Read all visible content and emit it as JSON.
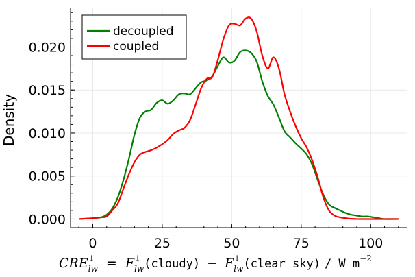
{
  "chart_data": {
    "type": "line",
    "ylabel": "Density",
    "xlabel_parts": {
      "cre": "CRE",
      "sub": "lw",
      "sup": "↓",
      "eq": "=",
      "f": "F",
      "cloudy": "(cloudy)",
      "minus": "−",
      "clear": "(clear sky)",
      "unit": "/ W m",
      "unit_exp": "−2"
    },
    "xlim": [
      -8,
      113
    ],
    "ylim": [
      -0.001,
      0.0245
    ],
    "xticks": [
      0,
      25,
      50,
      75,
      100
    ],
    "xtick_labels": [
      "0",
      "25",
      "50",
      "75",
      "100"
    ],
    "yticks": [
      0.0,
      0.005,
      0.01,
      0.015,
      0.02
    ],
    "ytick_labels": [
      "0.000",
      "0.005",
      "0.010",
      "0.015",
      "0.020"
    ],
    "grid": true,
    "legend_position": "top-left",
    "series": [
      {
        "name": "decoupled",
        "color": "#008000",
        "points": [
          [
            -5,
            0.0
          ],
          [
            0,
            0.0001
          ],
          [
            3,
            0.0002
          ],
          [
            5,
            0.0005
          ],
          [
            7,
            0.0012
          ],
          [
            9,
            0.0025
          ],
          [
            11,
            0.0045
          ],
          [
            13,
            0.007
          ],
          [
            15,
            0.0098
          ],
          [
            17,
            0.0118
          ],
          [
            19,
            0.0125
          ],
          [
            21,
            0.0127
          ],
          [
            23,
            0.0135
          ],
          [
            25,
            0.0138
          ],
          [
            27,
            0.0134
          ],
          [
            29,
            0.0138
          ],
          [
            31,
            0.0145
          ],
          [
            33,
            0.0146
          ],
          [
            35,
            0.0145
          ],
          [
            37,
            0.0152
          ],
          [
            39,
            0.0159
          ],
          [
            41,
            0.0161
          ],
          [
            43,
            0.0166
          ],
          [
            45,
            0.0178
          ],
          [
            47,
            0.0188
          ],
          [
            49,
            0.0182
          ],
          [
            51,
            0.0184
          ],
          [
            53,
            0.0194
          ],
          [
            55,
            0.0196
          ],
          [
            57,
            0.0193
          ],
          [
            59,
            0.0183
          ],
          [
            61,
            0.016
          ],
          [
            63,
            0.0143
          ],
          [
            65,
            0.0133
          ],
          [
            67,
            0.0118
          ],
          [
            69,
            0.0102
          ],
          [
            71,
            0.0095
          ],
          [
            73,
            0.0088
          ],
          [
            75,
            0.0082
          ],
          [
            77,
            0.0075
          ],
          [
            79,
            0.0063
          ],
          [
            81,
            0.0045
          ],
          [
            83,
            0.0028
          ],
          [
            85,
            0.0017
          ],
          [
            87,
            0.0013
          ],
          [
            89,
            0.001
          ],
          [
            91,
            0.0007
          ],
          [
            93,
            0.0005
          ],
          [
            95,
            0.0004
          ],
          [
            97,
            0.0003
          ],
          [
            99,
            0.0003
          ],
          [
            101,
            0.0002
          ],
          [
            103,
            0.0001
          ],
          [
            105,
            0.0
          ],
          [
            110,
            0.0
          ]
        ]
      },
      {
        "name": "coupled",
        "color": "#ff0000",
        "points": [
          [
            -5,
            0.0
          ],
          [
            0,
            0.0001
          ],
          [
            3,
            0.0002
          ],
          [
            5,
            0.0003
          ],
          [
            7,
            0.001
          ],
          [
            9,
            0.0018
          ],
          [
            11,
            0.0035
          ],
          [
            13,
            0.0052
          ],
          [
            15,
            0.0066
          ],
          [
            17,
            0.0075
          ],
          [
            19,
            0.0078
          ],
          [
            21,
            0.008
          ],
          [
            23,
            0.0083
          ],
          [
            25,
            0.0087
          ],
          [
            27,
            0.0092
          ],
          [
            29,
            0.0099
          ],
          [
            31,
            0.0103
          ],
          [
            33,
            0.0106
          ],
          [
            35,
            0.0115
          ],
          [
            37,
            0.0133
          ],
          [
            39,
            0.0152
          ],
          [
            41,
            0.0163
          ],
          [
            43,
            0.0165
          ],
          [
            45,
            0.0185
          ],
          [
            47,
            0.0209
          ],
          [
            49,
            0.0225
          ],
          [
            51,
            0.0227
          ],
          [
            53,
            0.0225
          ],
          [
            55,
            0.0233
          ],
          [
            57,
            0.0233
          ],
          [
            59,
            0.0218
          ],
          [
            61,
            0.019
          ],
          [
            63,
            0.0175
          ],
          [
            65,
            0.0188
          ],
          [
            67,
            0.0175
          ],
          [
            69,
            0.0145
          ],
          [
            71,
            0.0125
          ],
          [
            73,
            0.0108
          ],
          [
            75,
            0.0094
          ],
          [
            77,
            0.0083
          ],
          [
            79,
            0.0068
          ],
          [
            81,
            0.0048
          ],
          [
            83,
            0.0025
          ],
          [
            85,
            0.001
          ],
          [
            87,
            0.0004
          ],
          [
            89,
            0.0002
          ],
          [
            91,
            0.0001
          ],
          [
            95,
            0.0
          ],
          [
            110,
            0.0
          ]
        ]
      }
    ]
  }
}
